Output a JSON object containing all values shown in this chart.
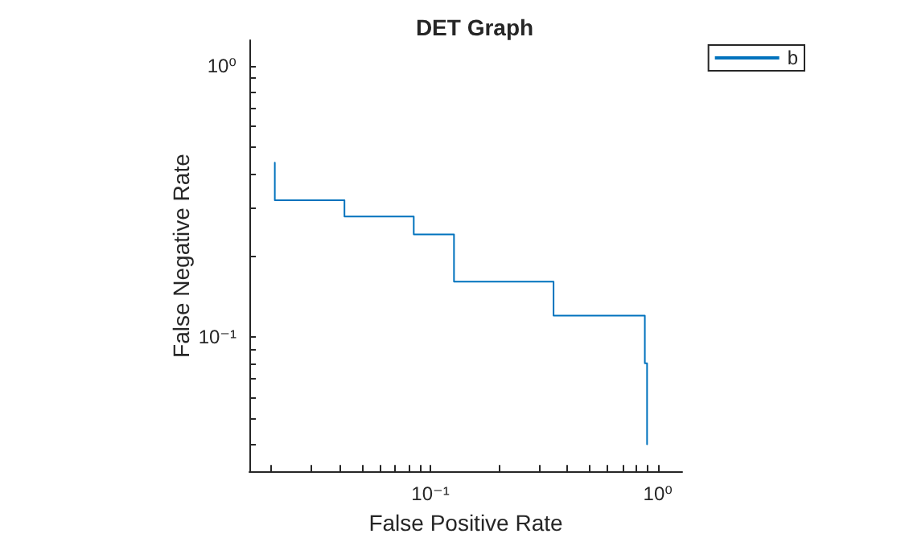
{
  "chart_data": {
    "type": "line",
    "title": "DET Graph",
    "xlabel": "False Positive Rate",
    "ylabel": "False Negative Rate",
    "log": "xy",
    "grid": false,
    "legend": "top right",
    "marker": "none",
    "line_style": "solid",
    "xlim": [
      0.016,
      1.28
    ],
    "ylim": [
      0.032,
      1.24
    ],
    "xticks": [
      {
        "value": 0.02,
        "label": null
      },
      {
        "value": 0.03,
        "label": null
      },
      {
        "value": 0.04,
        "label": null
      },
      {
        "value": 0.05,
        "label": null
      },
      {
        "value": 0.06,
        "label": null
      },
      {
        "value": 0.07,
        "label": null
      },
      {
        "value": 0.08,
        "label": null
      },
      {
        "value": 0.09,
        "label": null
      },
      {
        "value": 0.1,
        "label": "10⁻¹"
      },
      {
        "value": 0.2,
        "label": null
      },
      {
        "value": 0.3,
        "label": null
      },
      {
        "value": 0.4,
        "label": null
      },
      {
        "value": 0.5,
        "label": null
      },
      {
        "value": 0.6,
        "label": null
      },
      {
        "value": 0.7,
        "label": null
      },
      {
        "value": 0.8,
        "label": null
      },
      {
        "value": 0.9,
        "label": null
      },
      {
        "value": 1,
        "label": "10⁰"
      }
    ],
    "yticks": [
      {
        "value": 0.04,
        "label": null
      },
      {
        "value": 0.05,
        "label": null
      },
      {
        "value": 0.06,
        "label": null
      },
      {
        "value": 0.07,
        "label": null
      },
      {
        "value": 0.08,
        "label": null
      },
      {
        "value": 0.09,
        "label": null
      },
      {
        "value": 0.1,
        "label": "10⁻¹"
      },
      {
        "value": 0.2,
        "label": null
      },
      {
        "value": 0.3,
        "label": null
      },
      {
        "value": 0.4,
        "label": null
      },
      {
        "value": 0.5,
        "label": null
      },
      {
        "value": 0.6,
        "label": null
      },
      {
        "value": 0.7,
        "label": null
      },
      {
        "value": 0.8,
        "label": null
      },
      {
        "value": 0.9,
        "label": null
      },
      {
        "value": 1,
        "label": "10⁰"
      }
    ],
    "series": [
      {
        "name": "b",
        "color": "#0072bd",
        "x": [
          0.0207,
          0.0207,
          0.0419,
          0.0419,
          0.0845,
          0.0845,
          0.127,
          0.127,
          0.348,
          0.348,
          0.877,
          0.877,
          0.897,
          0.897
        ],
        "values": [
          0.439,
          0.319,
          0.319,
          0.278,
          0.278,
          0.239,
          0.239,
          0.16,
          0.16,
          0.12,
          0.12,
          0.08,
          0.08,
          0.0403
        ]
      }
    ]
  }
}
